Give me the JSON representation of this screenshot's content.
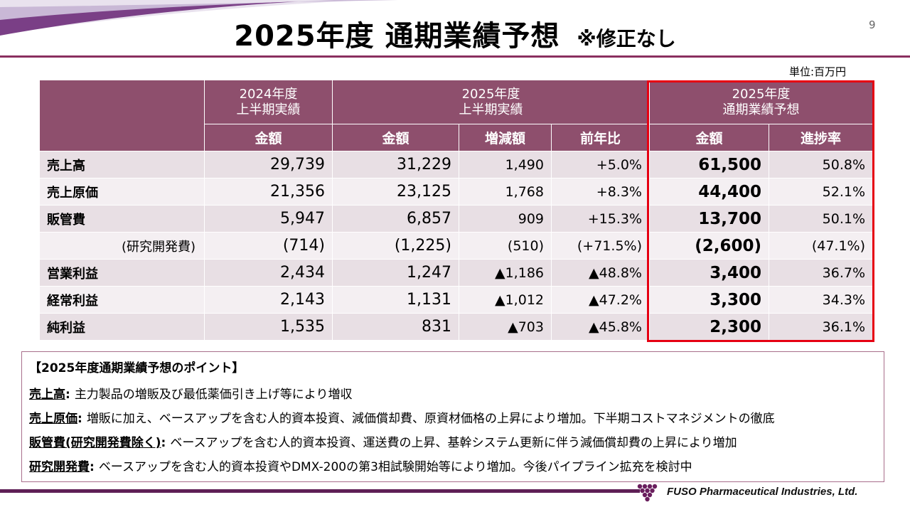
{
  "header": {
    "title": "2025年度 通期業績予想",
    "note": "※修正なし",
    "page_number": "9",
    "unit": "単位:百万円"
  },
  "table": {
    "group_headers": [
      {
        "line1": "2024年度",
        "line2": "上半期実績"
      },
      {
        "line1": "2025年度",
        "line2": "上半期実績"
      },
      {
        "line1": "2025年度",
        "line2": "通期業績予想"
      }
    ],
    "col_headers": [
      "金額",
      "金額",
      "増減額",
      "前年比",
      "金額",
      "進捗率"
    ],
    "rows": [
      {
        "label": "売上高",
        "cells": [
          "29,739",
          "31,229",
          "1,490",
          "+5.0%",
          "61,500",
          "50.8%"
        ]
      },
      {
        "label": "売上原価",
        "cells": [
          "21,356",
          "23,125",
          "1,768",
          "+8.3%",
          "44,400",
          "52.1%"
        ]
      },
      {
        "label": "販管費",
        "cells": [
          "5,947",
          "6,857",
          "909",
          "+15.3%",
          "13,700",
          "50.1%"
        ]
      },
      {
        "label": "(研究開発費)",
        "cells": [
          "(714)",
          "(1,225)",
          "(510)",
          "(+71.5%)",
          "(2,600)",
          "(47.1%)"
        ]
      },
      {
        "label": "営業利益",
        "cells": [
          "2,434",
          "1,247",
          "▲1,186",
          "▲48.8%",
          "3,400",
          "36.7%"
        ]
      },
      {
        "label": "経常利益",
        "cells": [
          "2,143",
          "1,131",
          "▲1,012",
          "▲47.2%",
          "3,300",
          "34.3%"
        ]
      },
      {
        "label": "純利益",
        "cells": [
          "1,535",
          "831",
          "▲703",
          "▲45.8%",
          "2,300",
          "36.1%"
        ]
      }
    ]
  },
  "points": {
    "title": "【2025年度通期業績予想のポイント】",
    "items": [
      {
        "key": "売上高",
        "text": "主力製品の増販及び最低薬価引き上げ等により増収"
      },
      {
        "key": "売上原価",
        "text": "増販に加え、ベースアップを含む人的資本投資、減価償却費、原資材価格の上昇により増加。下半期コストマネジメントの徹底"
      },
      {
        "key": "販管費(研究開発費除く)",
        "text": "ベースアップを含む人的資本投資、運送費の上昇、基幹システム更新に伴う減価償却費の上昇により増加"
      },
      {
        "key": "研究開発費",
        "text": "ベースアップを含む人的資本投資やDMX-200の第3相試験開始等により増加。今後パイプライン拡充を検討中"
      }
    ]
  },
  "footer": {
    "company": "FUSO Pharmaceutical Industries, Ltd."
  },
  "colors": {
    "header_bg": "#8e4f6d",
    "row_dark": "#e8dfe4",
    "row_light": "#f4eff2",
    "highlight_border": "#e60012",
    "accent": "#5e1f56"
  }
}
